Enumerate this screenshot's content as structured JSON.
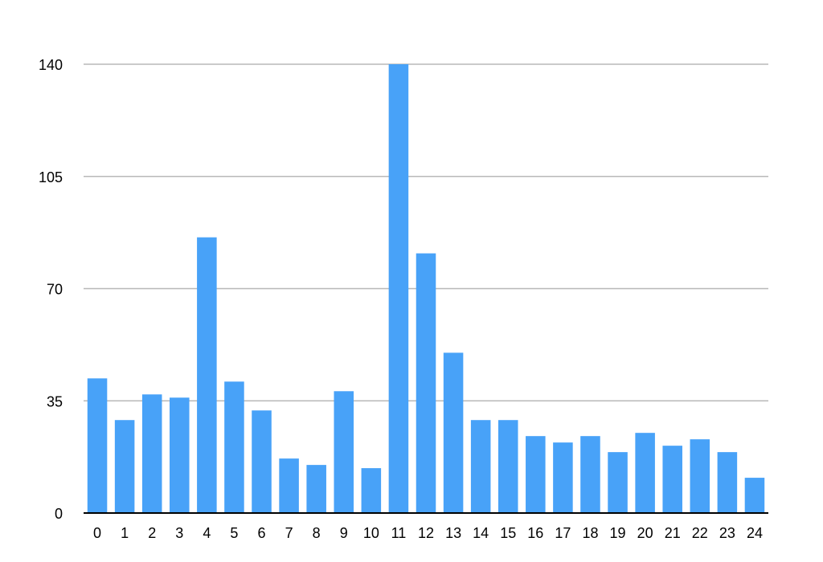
{
  "chart_data": {
    "type": "bar",
    "categories": [
      "0",
      "1",
      "2",
      "3",
      "4",
      "5",
      "6",
      "7",
      "8",
      "9",
      "10",
      "11",
      "12",
      "13",
      "14",
      "15",
      "16",
      "17",
      "18",
      "19",
      "20",
      "21",
      "22",
      "23",
      "24"
    ],
    "values": [
      42,
      29,
      37,
      36,
      86,
      41,
      32,
      17,
      15,
      38,
      14,
      140,
      81,
      50,
      29,
      29,
      24,
      22,
      24,
      19,
      25,
      21,
      23,
      19,
      11
    ],
    "yticks": [
      "0",
      "35",
      "70",
      "105",
      "140"
    ],
    "ylim": [
      0,
      140
    ],
    "grid": true,
    "legend": "none",
    "colors": {
      "bar": "#48a2f8",
      "grid": "#b8b8b8",
      "axis": "#000000"
    }
  }
}
